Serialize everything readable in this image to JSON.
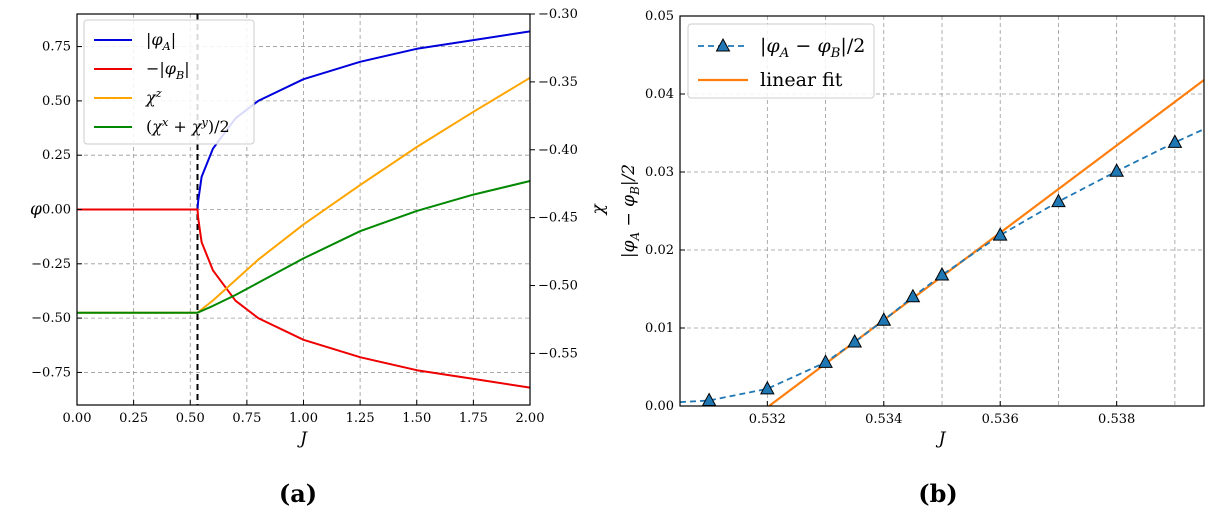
{
  "chart_data": [
    {
      "panel": "(a)",
      "type": "line",
      "xlabel": "J",
      "ylabel": "φ",
      "y2label": "χ",
      "xlim": [
        0,
        2
      ],
      "ylim": [
        -0.9,
        0.9
      ],
      "y2lim": [
        -0.588,
        -0.3
      ],
      "xticks": [
        0,
        0.25,
        0.5,
        0.75,
        1,
        1.25,
        1.5,
        1.75,
        2
      ],
      "xtick_labels": [
        "0.00",
        "0.25",
        "0.50",
        "0.75",
        "1.00",
        "1.25",
        "1.50",
        "1.75",
        "2.00"
      ],
      "yticks": [
        -0.75,
        -0.5,
        -0.25,
        0,
        0.25,
        0.5,
        0.75
      ],
      "ytick_labels": [
        "−0.75",
        "−0.50",
        "−0.25",
        "0.00",
        "0.25",
        "0.50",
        "0.75"
      ],
      "y2ticks": [
        -0.55,
        -0.5,
        -0.45,
        -0.4,
        -0.35,
        -0.3
      ],
      "y2tick_labels": [
        "−0.55",
        "−0.50",
        "−0.45",
        "−0.40",
        "−0.35",
        "−0.30"
      ],
      "grid": true,
      "legend_position": "top-left",
      "critical_J": 0.532,
      "series": [
        {
          "name": "|φ_A|",
          "legend": "|φA|",
          "color": "#0000dd",
          "axis": "left",
          "x": [
            0,
            0.532,
            0.535,
            0.55,
            0.6,
            0.7,
            0.8,
            1.0,
            1.25,
            1.5,
            1.75,
            2.0
          ],
          "y": [
            0,
            0,
            0.04,
            0.15,
            0.28,
            0.42,
            0.5,
            0.6,
            0.68,
            0.74,
            0.78,
            0.82
          ]
        },
        {
          "name": "-|φ_B|",
          "legend": "−|φB|",
          "color": "#ee0000",
          "axis": "left",
          "x": [
            0,
            0.532,
            0.535,
            0.55,
            0.6,
            0.7,
            0.8,
            1.0,
            1.25,
            1.5,
            1.75,
            2.0
          ],
          "y": [
            0,
            0,
            -0.04,
            -0.15,
            -0.28,
            -0.42,
            -0.5,
            -0.6,
            -0.68,
            -0.74,
            -0.78,
            -0.82
          ]
        },
        {
          "name": "χ^z",
          "legend": "χz",
          "color": "#ffa500",
          "axis": "right",
          "x": [
            0,
            0.532,
            0.6,
            0.7,
            0.8,
            1.0,
            1.25,
            1.5,
            1.75,
            2.0
          ],
          "y": [
            -0.52,
            -0.52,
            -0.511,
            -0.496,
            -0.481,
            -0.455,
            -0.426,
            -0.398,
            -0.372,
            -0.347
          ]
        },
        {
          "name": "(χ^x + χ^y)/2",
          "legend": "(χx + χy)/2",
          "color": "#008800",
          "axis": "right",
          "x": [
            0,
            0.532,
            0.6,
            0.7,
            0.8,
            1.0,
            1.25,
            1.5,
            1.75,
            2.0
          ],
          "y": [
            -0.52,
            -0.52,
            -0.515,
            -0.507,
            -0.498,
            -0.48,
            -0.46,
            -0.445,
            -0.433,
            -0.423
          ]
        }
      ]
    },
    {
      "panel": "(b)",
      "type": "line",
      "xlabel": "J",
      "ylabel": "|φA − φB|/2",
      "xlim": [
        0.5305,
        0.5395
      ],
      "ylim": [
        0,
        0.05
      ],
      "xticks": [
        0.532,
        0.534,
        0.536,
        0.538
      ],
      "xtick_labels": [
        "0.532",
        "0.534",
        "0.536",
        "0.538"
      ],
      "yticks": [
        0,
        0.01,
        0.02,
        0.03,
        0.04,
        0.05
      ],
      "ytick_labels": [
        "0.00",
        "0.01",
        "0.02",
        "0.03",
        "0.04",
        "0.05"
      ],
      "grid": true,
      "legend_position": "top-left",
      "series": [
        {
          "name": "|φ_A − φ_B|/2",
          "legend": "|φA − φB|/2",
          "color": "#1f77b4",
          "style": "dashed",
          "marker": "triangle",
          "x": [
            0.5305,
            0.531,
            0.532,
            0.533,
            0.5335,
            0.534,
            0.5345,
            0.535,
            0.536,
            0.537,
            0.538,
            0.539,
            0.5395
          ],
          "y": [
            0.0005,
            0.0007,
            0.0022,
            0.0056,
            0.0082,
            0.011,
            0.014,
            0.0168,
            0.0219,
            0.0262,
            0.0301,
            0.0338,
            0.0355
          ],
          "marker_x": [
            0.531,
            0.532,
            0.533,
            0.5335,
            0.534,
            0.5345,
            0.535,
            0.536,
            0.537,
            0.538,
            0.539
          ],
          "marker_y": [
            0.0007,
            0.0022,
            0.0056,
            0.0082,
            0.011,
            0.014,
            0.0168,
            0.0219,
            0.0262,
            0.0301,
            0.0338
          ]
        },
        {
          "name": "linear fit",
          "legend": "linear fit",
          "color": "#ff7f0e",
          "style": "solid",
          "x": [
            0.53203,
            0.5395
          ],
          "y": [
            0,
            0.0418
          ]
        }
      ]
    }
  ],
  "labels": {
    "panel_a": "(a)",
    "panel_b": "(b)"
  }
}
